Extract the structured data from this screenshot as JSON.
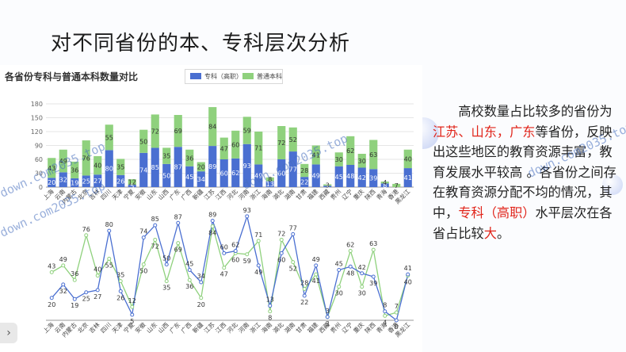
{
  "title": "对不同省份的本、专科层次分析",
  "panel_title": "各省份专科与普通本科数量对比",
  "legend": {
    "s1": "专科（高职）",
    "s2": "普通本科"
  },
  "colors": {
    "s1": "#4a6fd1",
    "s2": "#8fd17d"
  },
  "body": {
    "p1_a": "　　高校数量占比较多的省份为",
    "p1_red": "江苏、山东，广东",
    "p1_b": "等省份，反映出这些地区的教育资源丰富，教育发展水平较高 。各省份之间存在教育资源分配不均的情况，其中，",
    "p1_red2": "专科（高职）",
    "p1_c": "水平层次在各省占比较",
    "p1_red3": "大",
    "p1_d": "。"
  },
  "watermark": "down.com2035.top",
  "nav_arrow": "›",
  "chart_data": [
    {
      "type": "bar",
      "stacked": true,
      "categories": [
        "上海",
        "云南",
        "内蒙古",
        "北京",
        "吉林",
        "四川",
        "天津",
        "宁夏",
        "安徽",
        "山东",
        "山西",
        "广东",
        "广西",
        "新疆",
        "江苏",
        "江西",
        "河北",
        "河南",
        "浙江",
        "海南",
        "湖北",
        "湖南",
        "甘肃",
        "福建",
        "西藏",
        "贵州",
        "辽宁",
        "重庆",
        "陕西",
        "青海",
        "香港",
        "黑龙江"
      ],
      "series": [
        {
          "name": "专科（高职）",
          "values": [
            20,
            32,
            19,
            25,
            27,
            80,
            26,
            5,
            74,
            85,
            50,
            87,
            45,
            34,
            89,
            60,
            62,
            93,
            49,
            13,
            60,
            77,
            22,
            49,
            3,
            45,
            48,
            42,
            39,
            8,
            0,
            41
          ]
        },
        {
          "name": "普通本科",
          "values": [
            43,
            49,
            36,
            76,
            40,
            55,
            35,
            12,
            50,
            72,
            35,
            69,
            36,
            20,
            84,
            47,
            60,
            59,
            71,
            8,
            72,
            52,
            28,
            41,
            3,
            30,
            62,
            30,
            63,
            4,
            7,
            40
          ]
        }
      ],
      "ylim": [
        0,
        180
      ],
      "yticks": [
        0,
        30,
        60,
        90,
        120,
        150,
        180
      ],
      "grid": true,
      "legend_position": "top-center"
    },
    {
      "type": "line",
      "categories": [
        "上海",
        "云南",
        "内蒙古",
        "北京",
        "吉林",
        "四川",
        "天津",
        "宁夏",
        "安徽",
        "山东",
        "山西",
        "广东",
        "广西",
        "新疆",
        "江苏",
        "江西",
        "河北",
        "河南",
        "浙江",
        "海南",
        "湖北",
        "湖南",
        "甘肃",
        "福建",
        "西藏",
        "贵州",
        "辽宁",
        "重庆",
        "陕西",
        "青海",
        "香港",
        "黑龙江"
      ],
      "series": [
        {
          "name": "专科（高职）",
          "values": [
            20,
            32,
            19,
            25,
            27,
            80,
            26,
            5,
            74,
            85,
            50,
            87,
            45,
            34,
            89,
            60,
            62,
            93,
            49,
            13,
            60,
            77,
            22,
            49,
            3,
            45,
            48,
            42,
            39,
            8,
            0,
            41
          ]
        },
        {
          "name": "普通本科",
          "values": [
            43,
            49,
            36,
            76,
            40,
            55,
            35,
            12,
            50,
            72,
            35,
            69,
            36,
            20,
            84,
            47,
            60,
            59,
            71,
            8,
            72,
            52,
            28,
            41,
            3,
            30,
            62,
            30,
            63,
            4,
            7,
            40
          ]
        }
      ]
    }
  ]
}
